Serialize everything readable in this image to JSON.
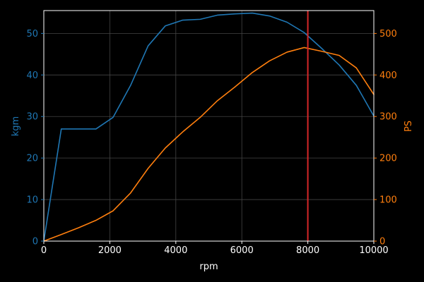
{
  "chart_data": {
    "type": "line",
    "title": "",
    "xlabel": "rpm",
    "ylabel_left": "kgm",
    "ylabel_right": "PS",
    "xlim": [
      0,
      10000
    ],
    "ylim_left": [
      0,
      55.5
    ],
    "ylim_right": [
      0,
      555
    ],
    "x_ticks": [
      0,
      2000,
      4000,
      6000,
      8000,
      10000
    ],
    "y_left_ticks": [
      0,
      10,
      20,
      30,
      40,
      50
    ],
    "y_right_ticks": [
      0,
      100,
      200,
      300,
      400,
      500
    ],
    "grid": true,
    "vertical_marker": {
      "x": 8000,
      "color": "#d62728"
    },
    "series": [
      {
        "axis": "left",
        "color": "#1f77b4",
        "x": [
          0,
          530,
          1050,
          1580,
          2100,
          2630,
          3160,
          3680,
          4210,
          4740,
          5260,
          5790,
          6320,
          6840,
          7370,
          7890,
          8420,
          8950,
          9470,
          10000
        ],
        "y": [
          0,
          27.0,
          27.0,
          27.0,
          29.8,
          37.5,
          47.0,
          51.8,
          53.2,
          53.4,
          54.4,
          54.7,
          54.9,
          54.2,
          52.7,
          50.2,
          46.4,
          42.4,
          37.5,
          30.1
        ]
      },
      {
        "axis": "right",
        "color": "#ff7f0e",
        "x": [
          0,
          530,
          1050,
          1580,
          2100,
          2630,
          3160,
          3680,
          4210,
          4740,
          5260,
          5790,
          6320,
          6840,
          7370,
          7890,
          8420,
          8950,
          9470,
          10000
        ],
        "y": [
          0,
          16,
          32,
          50,
          73,
          116,
          175,
          224,
          263,
          298,
          338,
          371,
          406,
          434,
          455,
          466,
          457,
          447,
          417,
          353
        ]
      }
    ]
  }
}
